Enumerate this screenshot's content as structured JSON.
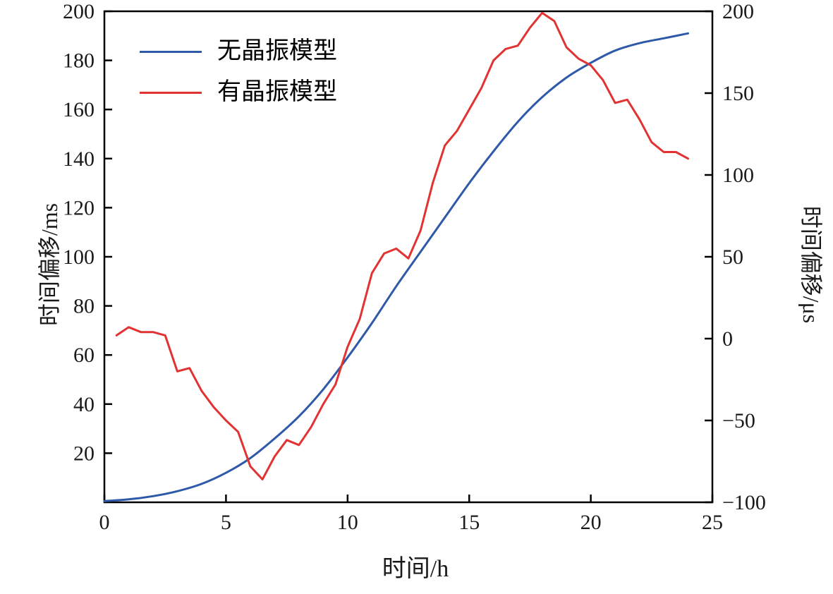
{
  "chart_data": {
    "type": "line",
    "title": "",
    "xlabel": "时间/h",
    "ylabel_left": "时间偏移/ms",
    "ylabel_right": "时间偏移/μs",
    "x_range": [
      0,
      25
    ],
    "x_ticks": [
      0,
      5,
      10,
      15,
      20,
      25
    ],
    "y_left_range": [
      0,
      200
    ],
    "y_left_ticks": [
      20,
      40,
      60,
      80,
      100,
      120,
      140,
      160,
      180,
      200
    ],
    "y_right_range": [
      -100,
      200
    ],
    "y_right_ticks": [
      -100,
      -50,
      0,
      50,
      100,
      150,
      200
    ],
    "grid": false,
    "legend_position": "upper-left",
    "frame_color": "#000000",
    "series": [
      {
        "name": "无晶振模型",
        "color": "#2e59a8",
        "axis": "left",
        "smooth": true,
        "x": [
          0,
          1,
          2,
          3,
          4,
          5,
          6,
          7,
          8,
          9,
          10,
          11,
          12,
          13,
          14,
          15,
          16,
          17,
          18,
          19,
          20,
          21,
          22,
          23,
          24
        ],
        "y": [
          0.5,
          1.2,
          2.5,
          4.5,
          7.5,
          12,
          18,
          26,
          35,
          46,
          59,
          73,
          88,
          102,
          116,
          130,
          143,
          155,
          165,
          173,
          179,
          184,
          187,
          189,
          191
        ]
      },
      {
        "name": "有晶振模型",
        "color": "#e23232",
        "axis": "right",
        "smooth": false,
        "x": [
          0.5,
          1,
          1.5,
          2,
          2.5,
          3,
          3.5,
          4,
          4.5,
          5,
          5.5,
          6,
          6.5,
          7,
          7.5,
          8,
          8.5,
          9,
          9.5,
          10,
          10.5,
          11,
          11.5,
          12,
          12.5,
          13,
          13.5,
          14,
          14.5,
          15,
          15.5,
          16,
          16.5,
          17,
          17.5,
          18,
          18.5,
          19,
          19.5,
          20,
          20.5,
          21,
          21.5,
          22,
          22.5,
          23,
          23.5,
          24
        ],
        "y": [
          2,
          7,
          4,
          4,
          2,
          -20,
          -18,
          -32,
          -42,
          -50,
          -57,
          -78,
          -86,
          -72,
          -62,
          -65,
          -54,
          -40,
          -28,
          -5,
          12,
          40,
          52,
          55,
          49,
          66,
          95,
          118,
          127,
          140,
          153,
          170,
          177,
          179,
          190,
          199,
          194,
          178,
          171,
          167,
          158,
          144,
          146,
          134,
          120,
          114,
          114,
          110
        ]
      }
    ]
  }
}
